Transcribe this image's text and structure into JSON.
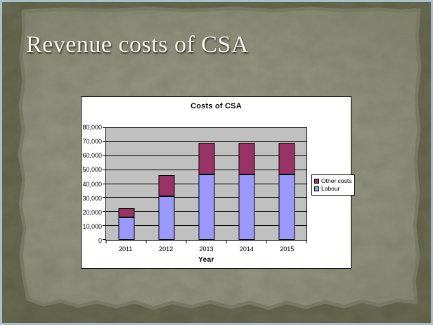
{
  "slide": {
    "title": "Revenue costs of CSA"
  },
  "chart_data": {
    "type": "bar",
    "stacked": true,
    "title": "Costs of CSA",
    "xlabel": "Year",
    "ylabel": "",
    "categories": [
      "2011",
      "2012",
      "2013",
      "2014",
      "2015"
    ],
    "series": [
      {
        "name": "Labour",
        "color": "#9999FF",
        "values": [
          16000,
          31000,
          47000,
          47000,
          47000
        ]
      },
      {
        "name": "Other costs",
        "color": "#993366",
        "values": [
          6500,
          15500,
          22500,
          22500,
          22500
        ]
      }
    ],
    "totals": [
      22500,
      46500,
      69500,
      69500,
      69500
    ],
    "ylim": [
      0,
      80000
    ],
    "y_tick_step": 10000,
    "y_tick_labels": [
      "0",
      "10,000",
      "20,000",
      "30,000",
      "40,000",
      "50,000",
      "60,000",
      "70,000",
      "80,000"
    ],
    "grid": true,
    "legend_position": "right",
    "legend_order": [
      "Other costs",
      "Labour"
    ],
    "plot_bg": "#C0C0C0",
    "chart_bg": "#FFFFFF"
  },
  "colors": {
    "slide_edge": "#5F6147",
    "slide_paper": "#93957F",
    "picture_border": "#A7C0D9",
    "title_text": "#F6F6F1"
  }
}
